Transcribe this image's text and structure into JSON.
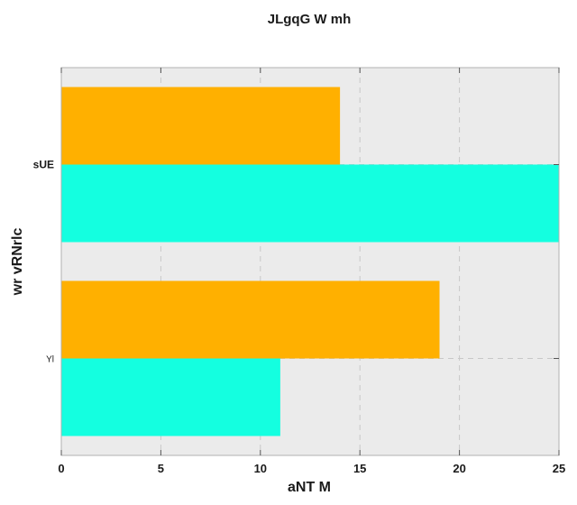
{
  "chart_data": {
    "type": "bar",
    "orientation": "horizontal",
    "title": "JLgqG W mh",
    "xlabel": "aNT M",
    "ylabel": "wr vRNrlc",
    "categories": [
      "sUE",
      "Yl"
    ],
    "series": [
      {
        "values": [
          14,
          19
        ],
        "color": "#ffb000"
      },
      {
        "values": [
          25,
          11
        ],
        "color": "#14ffe0"
      }
    ],
    "xlim": [
      0,
      25
    ],
    "xticks": [
      "0",
      "5",
      "10",
      "15",
      "20",
      "25"
    ],
    "grid": true,
    "grid_style": "dashed",
    "background": "#ebebeb",
    "legend": "none"
  }
}
